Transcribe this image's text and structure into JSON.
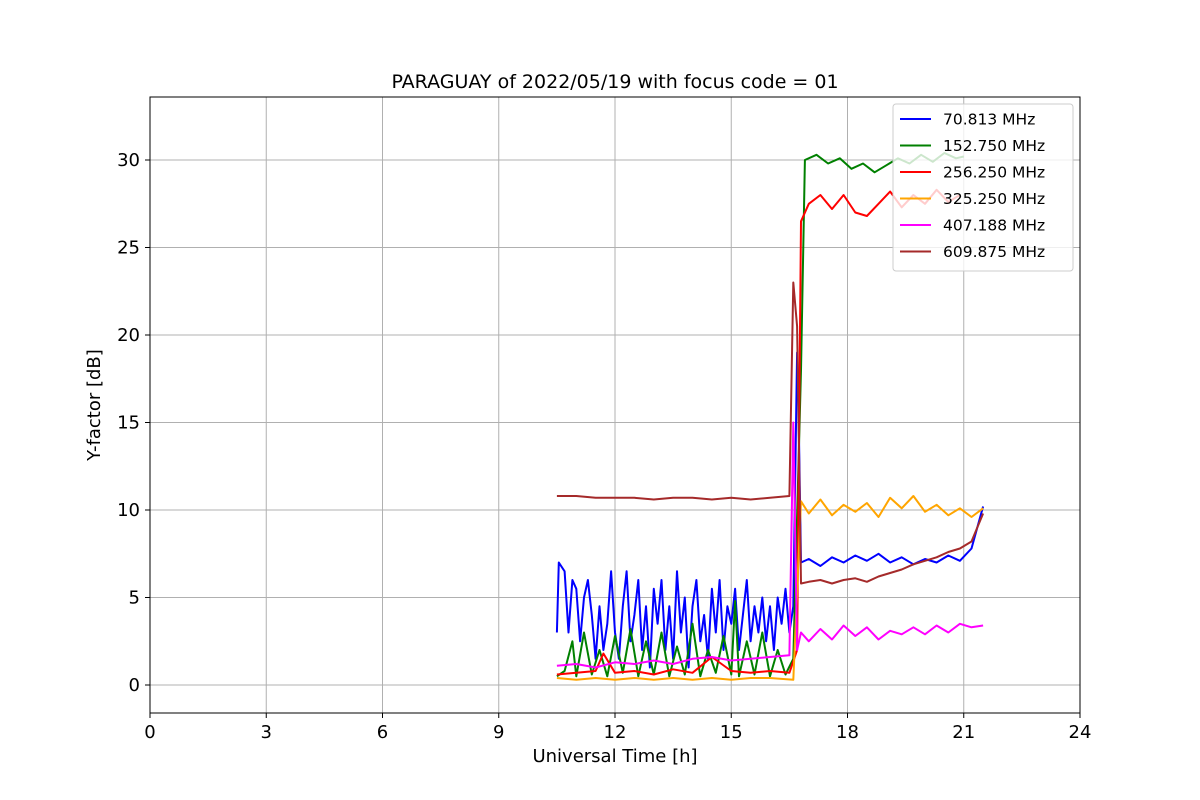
{
  "chart_data": {
    "type": "line",
    "title": "PARAGUAY of 2022/05/19 with focus code = 01",
    "xlabel": "Universal Time [h]",
    "ylabel": "Y-factor [dB]",
    "xlim": [
      0,
      24
    ],
    "ylim": [
      -1.6,
      33.6
    ],
    "xticks": [
      0,
      3,
      6,
      9,
      12,
      15,
      18,
      21,
      24
    ],
    "yticks": [
      0,
      5,
      10,
      15,
      20,
      25,
      30
    ],
    "grid": true,
    "legend_position": "top-right",
    "series": [
      {
        "name": "  70.813 MHz",
        "color": "#0000ff",
        "points": [
          [
            10.5,
            3.0
          ],
          [
            10.55,
            7.0
          ],
          [
            10.7,
            6.5
          ],
          [
            10.8,
            3.0
          ],
          [
            10.9,
            6.0
          ],
          [
            11.0,
            5.5
          ],
          [
            11.1,
            2.5
          ],
          [
            11.2,
            5.0
          ],
          [
            11.3,
            6.0
          ],
          [
            11.4,
            4.0
          ],
          [
            11.5,
            1.5
          ],
          [
            11.6,
            4.5
          ],
          [
            11.7,
            2.0
          ],
          [
            11.8,
            3.5
          ],
          [
            11.9,
            6.5
          ],
          [
            12.0,
            3.0
          ],
          [
            12.1,
            1.5
          ],
          [
            12.2,
            4.5
          ],
          [
            12.3,
            6.5
          ],
          [
            12.4,
            2.5
          ],
          [
            12.5,
            4.0
          ],
          [
            12.6,
            6.0
          ],
          [
            12.7,
            2.0
          ],
          [
            12.8,
            4.5
          ],
          [
            12.9,
            1.0
          ],
          [
            13.0,
            5.5
          ],
          [
            13.1,
            3.5
          ],
          [
            13.2,
            6.0
          ],
          [
            13.3,
            2.0
          ],
          [
            13.4,
            4.5
          ],
          [
            13.5,
            1.5
          ],
          [
            13.6,
            6.5
          ],
          [
            13.7,
            3.0
          ],
          [
            13.8,
            5.0
          ],
          [
            13.9,
            1.0
          ],
          [
            14.0,
            4.5
          ],
          [
            14.1,
            6.0
          ],
          [
            14.2,
            2.5
          ],
          [
            14.3,
            4.0
          ],
          [
            14.4,
            1.5
          ],
          [
            14.5,
            5.5
          ],
          [
            14.6,
            3.0
          ],
          [
            14.7,
            6.0
          ],
          [
            14.8,
            2.0
          ],
          [
            14.9,
            4.5
          ],
          [
            15.0,
            3.5
          ],
          [
            15.1,
            5.5
          ],
          [
            15.2,
            2.0
          ],
          [
            15.3,
            4.0
          ],
          [
            15.4,
            6.0
          ],
          [
            15.5,
            2.5
          ],
          [
            15.6,
            4.5
          ],
          [
            15.7,
            3.0
          ],
          [
            15.8,
            5.0
          ],
          [
            15.9,
            2.5
          ],
          [
            16.0,
            4.5
          ],
          [
            16.1,
            2.0
          ],
          [
            16.2,
            5.0
          ],
          [
            16.3,
            3.5
          ],
          [
            16.4,
            5.5
          ],
          [
            16.5,
            3.0
          ],
          [
            16.6,
            4.5
          ],
          [
            16.7,
            19.0
          ],
          [
            16.72,
            18.0
          ],
          [
            16.8,
            7.0
          ],
          [
            17.0,
            7.2
          ],
          [
            17.3,
            6.8
          ],
          [
            17.6,
            7.3
          ],
          [
            17.9,
            7.0
          ],
          [
            18.2,
            7.4
          ],
          [
            18.5,
            7.1
          ],
          [
            18.8,
            7.5
          ],
          [
            19.1,
            7.0
          ],
          [
            19.4,
            7.3
          ],
          [
            19.7,
            6.9
          ],
          [
            20.0,
            7.2
          ],
          [
            20.3,
            7.0
          ],
          [
            20.6,
            7.4
          ],
          [
            20.9,
            7.1
          ],
          [
            21.2,
            7.8
          ],
          [
            21.5,
            10.2
          ]
        ]
      },
      {
        "name": " 152.750 MHz",
        "color": "#008000",
        "points": [
          [
            10.5,
            0.5
          ],
          [
            10.7,
            0.8
          ],
          [
            10.9,
            2.5
          ],
          [
            11.0,
            0.5
          ],
          [
            11.2,
            3.0
          ],
          [
            11.4,
            0.6
          ],
          [
            11.6,
            2.0
          ],
          [
            11.8,
            0.5
          ],
          [
            12.0,
            2.8
          ],
          [
            12.2,
            0.7
          ],
          [
            12.4,
            3.2
          ],
          [
            12.6,
            0.5
          ],
          [
            12.8,
            2.5
          ],
          [
            13.0,
            0.6
          ],
          [
            13.2,
            3.0
          ],
          [
            13.4,
            0.5
          ],
          [
            13.6,
            2.2
          ],
          [
            13.8,
            0.6
          ],
          [
            14.0,
            3.5
          ],
          [
            14.2,
            0.5
          ],
          [
            14.4,
            2.0
          ],
          [
            14.6,
            0.7
          ],
          [
            14.8,
            2.8
          ],
          [
            15.0,
            0.6
          ],
          [
            15.1,
            4.8
          ],
          [
            15.2,
            0.5
          ],
          [
            15.4,
            2.5
          ],
          [
            15.6,
            0.6
          ],
          [
            15.8,
            3.0
          ],
          [
            16.0,
            0.5
          ],
          [
            16.2,
            2.0
          ],
          [
            16.4,
            0.6
          ],
          [
            16.6,
            1.5
          ],
          [
            16.8,
            18.0
          ],
          [
            16.9,
            30.0
          ],
          [
            17.2,
            30.3
          ],
          [
            17.5,
            29.8
          ],
          [
            17.8,
            30.1
          ],
          [
            18.1,
            29.5
          ],
          [
            18.4,
            29.8
          ],
          [
            18.7,
            29.3
          ],
          [
            19.0,
            29.7
          ],
          [
            19.3,
            30.1
          ],
          [
            19.6,
            29.8
          ],
          [
            19.9,
            30.3
          ],
          [
            20.2,
            29.9
          ],
          [
            20.5,
            30.4
          ],
          [
            20.8,
            30.1
          ],
          [
            21.0,
            30.2
          ]
        ]
      },
      {
        "name": " 256.250 MHz",
        "color": "#ff0000",
        "points": [
          [
            10.5,
            0.6
          ],
          [
            11.0,
            0.7
          ],
          [
            11.5,
            0.8
          ],
          [
            11.7,
            1.8
          ],
          [
            12.0,
            0.7
          ],
          [
            12.5,
            0.8
          ],
          [
            13.0,
            0.6
          ],
          [
            13.5,
            0.9
          ],
          [
            14.0,
            0.7
          ],
          [
            14.5,
            1.6
          ],
          [
            15.0,
            0.8
          ],
          [
            15.5,
            0.7
          ],
          [
            16.0,
            0.8
          ],
          [
            16.5,
            0.7
          ],
          [
            16.7,
            2.0
          ],
          [
            16.8,
            26.5
          ],
          [
            17.0,
            27.5
          ],
          [
            17.3,
            28.0
          ],
          [
            17.6,
            27.2
          ],
          [
            17.9,
            28.0
          ],
          [
            18.2,
            27.0
          ],
          [
            18.5,
            26.8
          ],
          [
            18.8,
            27.5
          ],
          [
            19.1,
            28.2
          ],
          [
            19.4,
            27.3
          ],
          [
            19.7,
            28.0
          ],
          [
            20.0,
            27.5
          ],
          [
            20.3,
            28.3
          ],
          [
            20.6,
            27.6
          ],
          [
            20.9,
            28.0
          ]
        ]
      },
      {
        "name": " 325.250 MHz",
        "color": "#ffa500",
        "points": [
          [
            10.5,
            0.4
          ],
          [
            11.0,
            0.3
          ],
          [
            11.5,
            0.4
          ],
          [
            12.0,
            0.3
          ],
          [
            12.5,
            0.4
          ],
          [
            13.0,
            0.3
          ],
          [
            13.5,
            0.4
          ],
          [
            14.0,
            0.3
          ],
          [
            14.5,
            0.4
          ],
          [
            15.0,
            0.3
          ],
          [
            15.5,
            0.4
          ],
          [
            16.0,
            0.4
          ],
          [
            16.6,
            0.3
          ],
          [
            16.8,
            10.5
          ],
          [
            17.0,
            9.8
          ],
          [
            17.3,
            10.6
          ],
          [
            17.6,
            9.7
          ],
          [
            17.9,
            10.3
          ],
          [
            18.2,
            9.9
          ],
          [
            18.5,
            10.4
          ],
          [
            18.8,
            9.6
          ],
          [
            19.1,
            10.7
          ],
          [
            19.4,
            10.1
          ],
          [
            19.7,
            10.8
          ],
          [
            20.0,
            9.9
          ],
          [
            20.3,
            10.3
          ],
          [
            20.6,
            9.7
          ],
          [
            20.9,
            10.1
          ],
          [
            21.2,
            9.6
          ],
          [
            21.5,
            10.1
          ]
        ]
      },
      {
        "name": " 407.188 MHz",
        "color": "#ff00ff",
        "points": [
          [
            10.5,
            1.1
          ],
          [
            11.0,
            1.2
          ],
          [
            11.5,
            1.0
          ],
          [
            12.0,
            1.3
          ],
          [
            12.5,
            1.2
          ],
          [
            13.0,
            1.4
          ],
          [
            13.5,
            1.2
          ],
          [
            14.0,
            1.5
          ],
          [
            14.5,
            1.6
          ],
          [
            15.0,
            1.4
          ],
          [
            15.5,
            1.5
          ],
          [
            16.0,
            1.6
          ],
          [
            16.5,
            1.7
          ],
          [
            16.6,
            15.0
          ],
          [
            16.7,
            2.0
          ],
          [
            16.8,
            3.0
          ],
          [
            17.0,
            2.5
          ],
          [
            17.3,
            3.2
          ],
          [
            17.6,
            2.6
          ],
          [
            17.9,
            3.4
          ],
          [
            18.2,
            2.8
          ],
          [
            18.5,
            3.3
          ],
          [
            18.8,
            2.6
          ],
          [
            19.1,
            3.1
          ],
          [
            19.4,
            2.9
          ],
          [
            19.7,
            3.3
          ],
          [
            20.0,
            2.9
          ],
          [
            20.3,
            3.4
          ],
          [
            20.6,
            3.0
          ],
          [
            20.9,
            3.5
          ],
          [
            21.2,
            3.3
          ],
          [
            21.5,
            3.4
          ]
        ]
      },
      {
        "name": " 609.875 MHz",
        "color": "#a52a2a",
        "points": [
          [
            10.5,
            10.8
          ],
          [
            11.0,
            10.8
          ],
          [
            11.5,
            10.7
          ],
          [
            12.0,
            10.7
          ],
          [
            12.5,
            10.7
          ],
          [
            13.0,
            10.6
          ],
          [
            13.5,
            10.7
          ],
          [
            14.0,
            10.7
          ],
          [
            14.5,
            10.6
          ],
          [
            15.0,
            10.7
          ],
          [
            15.5,
            10.6
          ],
          [
            16.0,
            10.7
          ],
          [
            16.5,
            10.8
          ],
          [
            16.6,
            23.0
          ],
          [
            16.7,
            20.5
          ],
          [
            16.8,
            5.8
          ],
          [
            17.0,
            5.9
          ],
          [
            17.3,
            6.0
          ],
          [
            17.6,
            5.8
          ],
          [
            17.9,
            6.0
          ],
          [
            18.2,
            6.1
          ],
          [
            18.5,
            5.9
          ],
          [
            18.8,
            6.2
          ],
          [
            19.1,
            6.4
          ],
          [
            19.4,
            6.6
          ],
          [
            19.7,
            6.9
          ],
          [
            20.0,
            7.1
          ],
          [
            20.3,
            7.3
          ],
          [
            20.6,
            7.6
          ],
          [
            20.9,
            7.8
          ],
          [
            21.2,
            8.2
          ],
          [
            21.5,
            9.8
          ]
        ]
      }
    ]
  }
}
